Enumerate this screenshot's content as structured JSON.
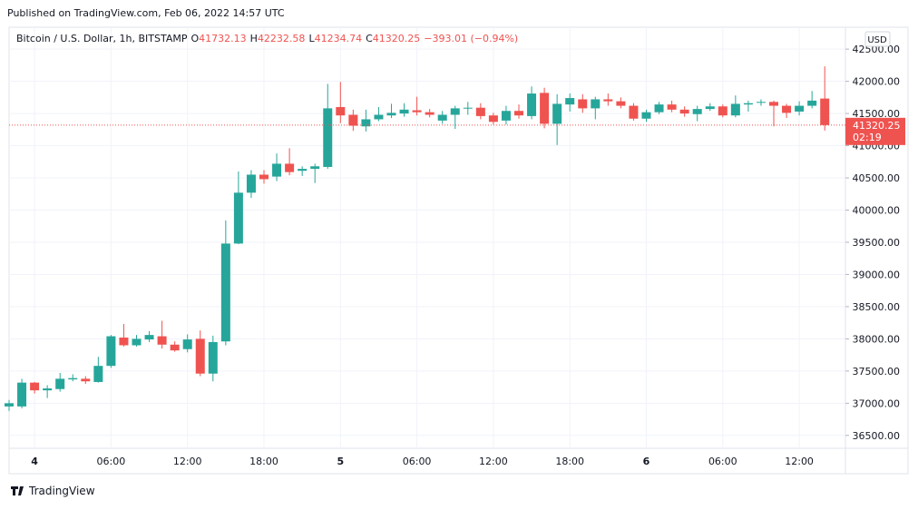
{
  "published": "Published on TradingView.com, Feb 06, 2022 14:57 UTC",
  "logo": "TradingView",
  "currency": "USD",
  "countdown": "02:19",
  "ohlc_labels": [
    "O",
    "H",
    "L",
    "C"
  ],
  "change_label": "−393.01 (−0.94%)",
  "chart_data": {
    "type": "candlestick",
    "title": "Bitcoin / U.S. Dollar, 1h, BITSTAMP",
    "categories": [
      null,
      null,
      "4",
      null,
      null,
      null,
      null,
      null,
      "06:00",
      null,
      null,
      null,
      null,
      null,
      "12:00",
      null,
      null,
      null,
      null,
      null,
      "18:00",
      null,
      null,
      null,
      null,
      null,
      "5",
      null,
      null,
      null,
      null,
      null,
      "06:00",
      null,
      null,
      null,
      null,
      null,
      "12:00",
      null,
      null,
      null,
      null,
      null,
      "18:00",
      null,
      null,
      null,
      null,
      null,
      "6",
      null,
      null,
      null,
      null,
      null,
      "06:00",
      null,
      null,
      null,
      null,
      null,
      "12:00",
      null,
      null
    ],
    "open": [
      36950,
      36950,
      37320,
      37200,
      37220,
      37370,
      37380,
      37330,
      37580,
      38020,
      37900,
      37990,
      38040,
      37910,
      37840,
      38000,
      37460,
      37960,
      39480,
      40270,
      40550,
      40520,
      40720,
      40610,
      40640,
      40670,
      41600,
      41480,
      41300,
      41410,
      41470,
      41500,
      41550,
      41520,
      41390,
      41480,
      41580,
      41590,
      41470,
      41390,
      41540,
      41460,
      41820,
      41340,
      41640,
      41720,
      41580,
      41720,
      41690,
      41620,
      41420,
      41520,
      41640,
      41560,
      41490,
      41570,
      41610,
      41470,
      41640,
      41670,
      41680,
      41620,
      41530,
      41620,
      41732.13
    ],
    "high": [
      37050,
      37380,
      37330,
      37280,
      37470,
      37450,
      37420,
      37720,
      38060,
      38230,
      38060,
      38120,
      38280,
      37960,
      38070,
      38130,
      38050,
      39840,
      40600,
      40620,
      40620,
      40880,
      40960,
      40680,
      40720,
      41960,
      41990,
      41560,
      41560,
      41600,
      41650,
      41660,
      41760,
      41570,
      41540,
      41620,
      41680,
      41660,
      41510,
      41620,
      41640,
      41920,
      41900,
      41800,
      41810,
      41800,
      41760,
      41810,
      41750,
      41660,
      41560,
      41680,
      41700,
      41610,
      41620,
      41660,
      41640,
      41780,
      41700,
      41720,
      41700,
      41650,
      41690,
      41850,
      42232.58
    ],
    "low": [
      36880,
      36920,
      37150,
      37080,
      37180,
      37340,
      37300,
      37320,
      37550,
      37880,
      37880,
      37950,
      37850,
      37800,
      37790,
      37420,
      37340,
      37900,
      39470,
      40190,
      40410,
      40450,
      40540,
      40530,
      40420,
      40640,
      41350,
      41230,
      41220,
      41380,
      41430,
      41450,
      41470,
      41440,
      41340,
      41260,
      41480,
      41410,
      41330,
      41330,
      41420,
      41410,
      41270,
      41010,
      41530,
      41510,
      41410,
      41620,
      41580,
      41390,
      41370,
      41490,
      41520,
      41450,
      41380,
      41540,
      41440,
      41440,
      41530,
      41620,
      41300,
      41430,
      41470,
      41580,
      41234.74
    ],
    "close": [
      37000,
      37320,
      37200,
      37230,
      37380,
      37390,
      37340,
      37580,
      38040,
      37900,
      38000,
      38060,
      37910,
      37820,
      37990,
      37460,
      37950,
      39480,
      40270,
      40550,
      40480,
      40720,
      40590,
      40640,
      40680,
      41580,
      41470,
      41310,
      41410,
      41480,
      41510,
      41560,
      41520,
      41480,
      41480,
      41580,
      41590,
      41460,
      41370,
      41540,
      41470,
      41810,
      41340,
      41650,
      41740,
      41580,
      41720,
      41690,
      41620,
      41420,
      41520,
      41640,
      41560,
      41500,
      41570,
      41610,
      41470,
      41650,
      41660,
      41680,
      41620,
      41510,
      41620,
      41700,
      41320.25
    ],
    "up_color": "#26a69a",
    "down_color": "#ef5350",
    "ylim": [
      36300,
      42840
    ],
    "yticks": [
      {
        "value": 36500,
        "label": "36500.00"
      },
      {
        "value": 37000,
        "label": "37000.00"
      },
      {
        "value": 37500,
        "label": "37500.00"
      },
      {
        "value": 38000,
        "label": "38000.00"
      },
      {
        "value": 38500,
        "label": "38500.00"
      },
      {
        "value": 39000,
        "label": "39000.00"
      },
      {
        "value": 39500,
        "label": "39500.00"
      },
      {
        "value": 40000,
        "label": "40000.00"
      },
      {
        "value": 40500,
        "label": "40500.00"
      },
      {
        "value": 41000,
        "label": "41000.00"
      },
      {
        "value": 41500,
        "label": "41500.00"
      },
      {
        "value": 42000,
        "label": "42000.00"
      },
      {
        "value": 42500,
        "label": "42500.00"
      }
    ],
    "grid": true
  }
}
